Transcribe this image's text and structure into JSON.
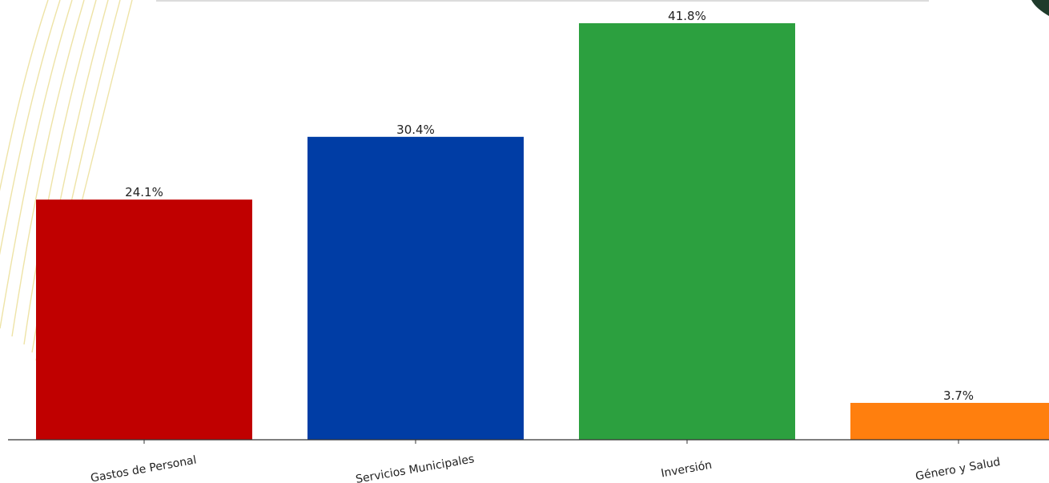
{
  "chart_data": {
    "type": "bar",
    "categories": [
      "Gastos de Personal",
      "Servicios Municipales",
      "Inversión",
      "Género y Salud"
    ],
    "values": [
      24.1,
      30.4,
      41.8,
      3.7
    ],
    "value_labels": [
      "24.1%",
      "30.4%",
      "41.8%",
      "3.7%"
    ],
    "colors": [
      "#c00000",
      "#003da5",
      "#2ca03f",
      "#ff7f0e"
    ],
    "ylim": [
      0,
      41.8
    ],
    "grid": false,
    "title": "",
    "xlabel": "",
    "ylabel": ""
  }
}
